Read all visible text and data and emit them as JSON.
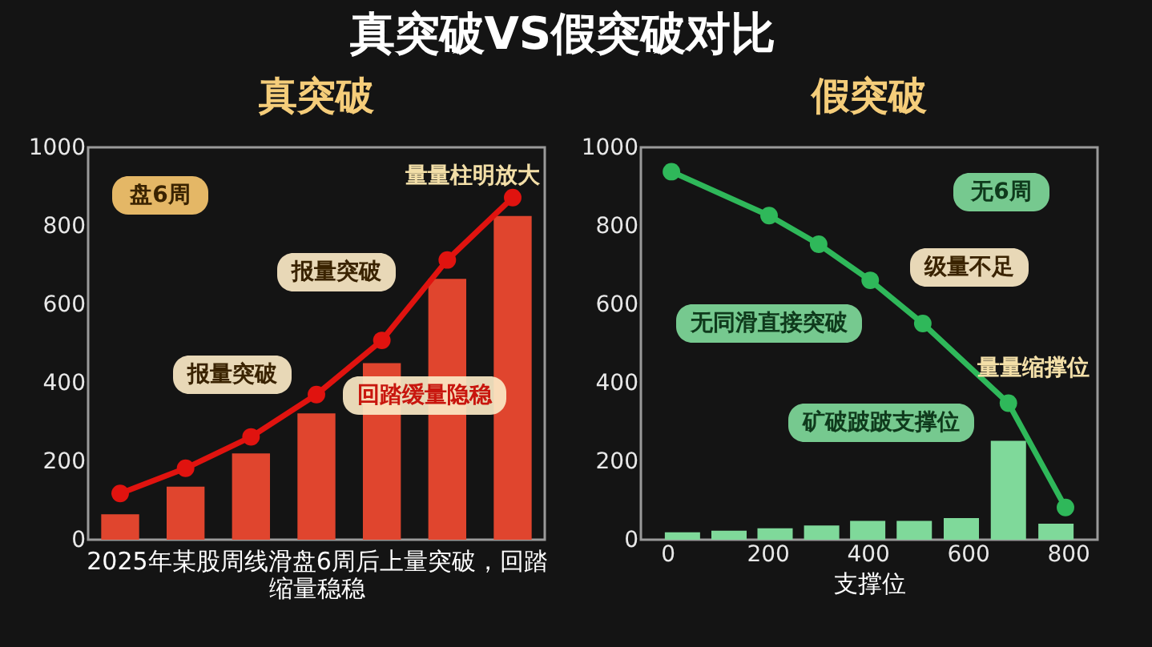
{
  "chart_data": [
    {
      "type": "bar",
      "title": "真突破",
      "xlabel": "2025年某股周线滑盘6周后上量突破，回踏缩量稳稳",
      "categories": [
        null,
        null,
        null,
        null,
        null,
        null,
        null
      ],
      "series": [
        {
          "type": "bar",
          "color": "#e0452e",
          "values": [
            65,
            135,
            220,
            322,
            450,
            665,
            825
          ]
        },
        {
          "type": "line",
          "color": "#e0130f",
          "values": [
            118,
            182,
            262,
            370,
            508,
            713,
            872
          ]
        }
      ],
      "ylim": [
        0,
        1000
      ],
      "yticks": [
        0,
        200,
        400,
        600,
        800,
        1000
      ],
      "marker": "circle",
      "annotations": [
        "真突破VS假突破对比",
        "盘6周",
        "报量突破",
        "报量突破",
        "回踏缓量隐稳",
        "量量柱明放大"
      ]
    },
    {
      "type": "bar",
      "title": "假突破",
      "xlabel": "支撑位",
      "series": [
        {
          "type": "bar",
          "color": "#7fd99a",
          "x": [
            30,
            123,
            215,
            308,
            400,
            493,
            587,
            681,
            776
          ],
          "values": [
            19,
            23,
            29,
            36,
            48,
            48,
            55,
            252,
            41
          ]
        },
        {
          "type": "line",
          "color": "#2fb85a",
          "x": [
            8,
            203,
            302,
            405,
            510,
            681,
            795
          ],
          "values": [
            938,
            826,
            753,
            661,
            551,
            348,
            82
          ]
        }
      ],
      "xlim": [
        -53,
        859
      ],
      "xticks": [
        0,
        200,
        400,
        600,
        800
      ],
      "ylim": [
        0,
        1000
      ],
      "yticks": [
        0,
        200,
        400,
        600,
        800,
        1000
      ],
      "marker": "circle",
      "annotations": [
        "无6周",
        "无同滑直接突破",
        "级量不足",
        "量量缩撑位",
        "矿破跛跛支撑位"
      ]
    }
  ]
}
